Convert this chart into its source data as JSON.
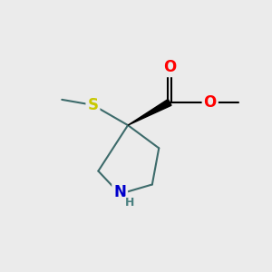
{
  "bg_color": "#ebebeb",
  "bond_color": "#3d6b6b",
  "bond_color_dark": "#2a2a2a",
  "bond_width": 1.5,
  "atom_colors": {
    "S": "#c8c800",
    "O": "#ff0000",
    "N": "#0000cc",
    "C": "#000000",
    "H": "#4a8080"
  },
  "figsize": [
    3.0,
    3.0
  ],
  "dpi": 100,
  "xlim": [
    0,
    10
  ],
  "ylim": [
    0,
    10
  ]
}
